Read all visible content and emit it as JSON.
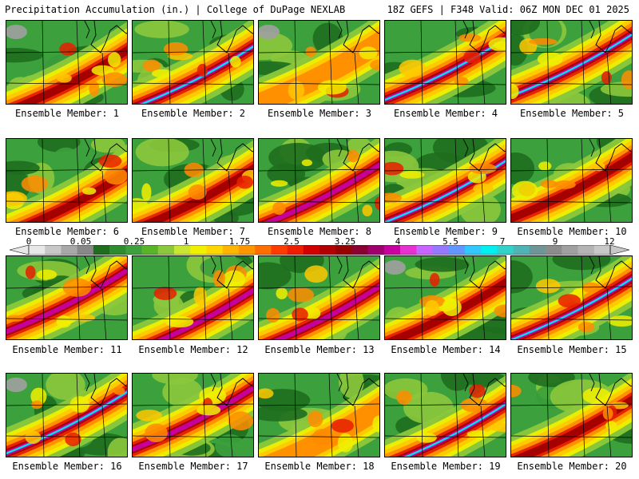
{
  "header": {
    "title_left": "Precipitation Accumulation (in.) | College of DuPage NEXLAB",
    "title_right": "18Z GEFS | F348 Valid: 06Z MON DEC 01 2025"
  },
  "panel_label_prefix": "Ensemble Member:",
  "members": [
    {
      "label": "Ensemble Member: 1"
    },
    {
      "label": "Ensemble Member: 2"
    },
    {
      "label": "Ensemble Member: 3"
    },
    {
      "label": "Ensemble Member: 4"
    },
    {
      "label": "Ensemble Member: 5"
    },
    {
      "label": "Ensemble Member: 6"
    },
    {
      "label": "Ensemble Member: 7"
    },
    {
      "label": "Ensemble Member: 8"
    },
    {
      "label": "Ensemble Member: 9"
    },
    {
      "label": "Ensemble Member: 10"
    },
    {
      "label": "Ensemble Member: 11"
    },
    {
      "label": "Ensemble Member: 12"
    },
    {
      "label": "Ensemble Member: 13"
    },
    {
      "label": "Ensemble Member: 14"
    },
    {
      "label": "Ensemble Member: 15"
    },
    {
      "label": "Ensemble Member: 16"
    },
    {
      "label": "Ensemble Member: 17"
    },
    {
      "label": "Ensemble Member: 18"
    },
    {
      "label": "Ensemble Member: 19"
    },
    {
      "label": "Ensemble Member: 20"
    }
  ],
  "colorbar": {
    "tick_labels": [
      "0",
      "0.05",
      "0.25",
      "1",
      "1.75",
      "2.5",
      "3.25",
      "4",
      "5.5",
      "7",
      "9",
      "12"
    ],
    "colors": [
      "#e8e8e8",
      "#c8c8c8",
      "#a8a8a8",
      "#888888",
      "#1e6e1e",
      "#2e8b2e",
      "#3ca03c",
      "#5ab428",
      "#8cc83c",
      "#c8e632",
      "#f0f000",
      "#ffd700",
      "#ffb400",
      "#ff9600",
      "#ff6e00",
      "#ff3c00",
      "#f01e00",
      "#d20000",
      "#b40000",
      "#960000",
      "#8b0032",
      "#a0006e",
      "#c800a0",
      "#e632d2",
      "#c864ff",
      "#9678ff",
      "#6496ff",
      "#32c8ff",
      "#00f0f0",
      "#32d2c8",
      "#50b4b4",
      "#6e9696",
      "#8c8c8c",
      "#a0a0a0",
      "#b4b4b4",
      "#c8c8c8"
    ]
  },
  "palette": {
    "dark_green": "#1e6e1e",
    "green": "#3ca03c",
    "light_green": "#8cc83c",
    "yellow": "#f0f000",
    "gold": "#ffc800",
    "orange": "#ff8c00",
    "red": "#e61e00",
    "dark_red": "#a00000",
    "magenta": "#c800a0",
    "violet": "#b450ff",
    "cyan": "#00e6f0",
    "gray": "#a0a0a0",
    "boundary": "#000000"
  }
}
